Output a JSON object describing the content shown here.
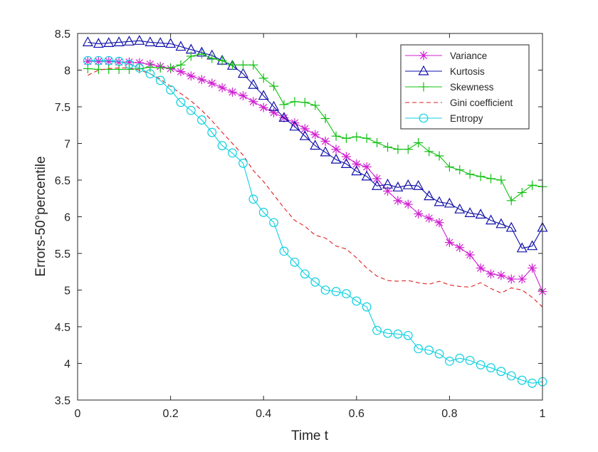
{
  "chart_data": {
    "type": "line",
    "title": "",
    "xlabel": "Time t",
    "ylabel": "Errors-50°percentile",
    "xlim": [
      0,
      1
    ],
    "ylim": [
      3.5,
      8.5
    ],
    "xticks": [
      "0",
      "0.2",
      "0.4",
      "0.6",
      "0.8",
      "1"
    ],
    "xtick_values": [
      0,
      0.2,
      0.4,
      0.6,
      0.8,
      1
    ],
    "yticks": [
      "3.5",
      "4",
      "4.5",
      "5",
      "5.5",
      "6",
      "6.5",
      "7",
      "7.5",
      "8",
      "8.5"
    ],
    "ytick_values": [
      3.5,
      4,
      4.5,
      5,
      5.5,
      6,
      6.5,
      7,
      7.5,
      8,
      8.5
    ],
    "grid": false,
    "legend_position": "top-right",
    "x": [
      0.022,
      0.045,
      0.067,
      0.089,
      0.111,
      0.133,
      0.156,
      0.178,
      0.2,
      0.222,
      0.244,
      0.267,
      0.289,
      0.311,
      0.333,
      0.356,
      0.378,
      0.4,
      0.422,
      0.444,
      0.467,
      0.489,
      0.511,
      0.533,
      0.556,
      0.578,
      0.6,
      0.622,
      0.644,
      0.667,
      0.689,
      0.711,
      0.733,
      0.756,
      0.778,
      0.8,
      0.822,
      0.844,
      0.867,
      0.889,
      0.911,
      0.933,
      0.956,
      0.978,
      1.0
    ],
    "series": [
      {
        "name": "Variance",
        "color": "#d020d0",
        "linestyle": "solid",
        "marker": "asterisk",
        "values": [
          8.12,
          8.12,
          8.12,
          8.11,
          8.11,
          8.1,
          8.08,
          8.05,
          8.02,
          7.98,
          7.92,
          7.87,
          7.82,
          7.76,
          7.7,
          7.65,
          7.57,
          7.49,
          7.42,
          7.35,
          7.28,
          7.2,
          7.12,
          7.03,
          6.92,
          6.82,
          6.72,
          6.68,
          6.52,
          6.35,
          6.22,
          6.17,
          6.04,
          5.98,
          5.92,
          5.65,
          5.58,
          5.48,
          5.3,
          5.22,
          5.2,
          5.15,
          5.15,
          5.3,
          4.98
        ]
      },
      {
        "name": "Kurtosis",
        "color": "#1010a8",
        "linestyle": "solid",
        "marker": "triangle",
        "values": [
          8.38,
          8.36,
          8.37,
          8.38,
          8.39,
          8.4,
          8.38,
          8.37,
          8.36,
          8.32,
          8.28,
          8.24,
          8.2,
          8.13,
          8.06,
          7.95,
          7.8,
          7.65,
          7.5,
          7.35,
          7.23,
          7.1,
          6.97,
          6.88,
          6.78,
          6.72,
          6.62,
          6.55,
          6.42,
          6.44,
          6.4,
          6.43,
          6.42,
          6.28,
          6.2,
          6.18,
          6.1,
          6.05,
          6.03,
          5.95,
          5.9,
          5.85,
          5.57,
          5.6,
          5.85
        ]
      },
      {
        "name": "Skewness",
        "color": "#10c010",
        "linestyle": "solid",
        "marker": "plus",
        "values": [
          8.02,
          8.01,
          8.01,
          8.01,
          8.01,
          8.02,
          8.04,
          8.03,
          8.03,
          8.07,
          8.19,
          8.22,
          8.16,
          8.13,
          8.07,
          8.07,
          8.07,
          7.89,
          7.78,
          7.53,
          7.57,
          7.56,
          7.52,
          7.34,
          7.1,
          7.07,
          7.09,
          7.07,
          7.01,
          6.95,
          6.92,
          6.92,
          7.01,
          6.89,
          6.83,
          6.68,
          6.64,
          6.58,
          6.55,
          6.52,
          6.5,
          6.22,
          6.33,
          6.43,
          6.41
        ]
      },
      {
        "name": "Gini coefficient",
        "color": "#e02020",
        "linestyle": "dashed",
        "marker": "none",
        "values": [
          7.93,
          8.0,
          8.02,
          8.03,
          8.03,
          8.0,
          7.95,
          7.88,
          7.78,
          7.68,
          7.58,
          7.45,
          7.31,
          7.15,
          7.0,
          6.84,
          6.63,
          6.48,
          6.3,
          6.12,
          5.95,
          5.87,
          5.75,
          5.71,
          5.6,
          5.56,
          5.44,
          5.3,
          5.19,
          5.13,
          5.12,
          5.13,
          5.1,
          5.08,
          5.12,
          5.07,
          5.05,
          5.04,
          5.1,
          5.02,
          4.96,
          5.03,
          5.0,
          4.9,
          4.77
        ]
      },
      {
        "name": "Entropy",
        "color": "#10d0e0",
        "linestyle": "solid",
        "marker": "circle",
        "values": [
          8.13,
          8.13,
          8.13,
          8.12,
          8.08,
          8.03,
          7.95,
          7.86,
          7.73,
          7.56,
          7.45,
          7.32,
          7.15,
          6.97,
          6.87,
          6.73,
          6.24,
          6.06,
          5.92,
          5.53,
          5.38,
          5.22,
          5.11,
          5.0,
          4.98,
          4.95,
          4.85,
          4.77,
          4.45,
          4.41,
          4.4,
          4.38,
          4.2,
          4.18,
          4.13,
          4.03,
          4.07,
          4.04,
          3.98,
          3.94,
          3.89,
          3.83,
          3.77,
          3.73,
          3.75
        ]
      }
    ]
  }
}
